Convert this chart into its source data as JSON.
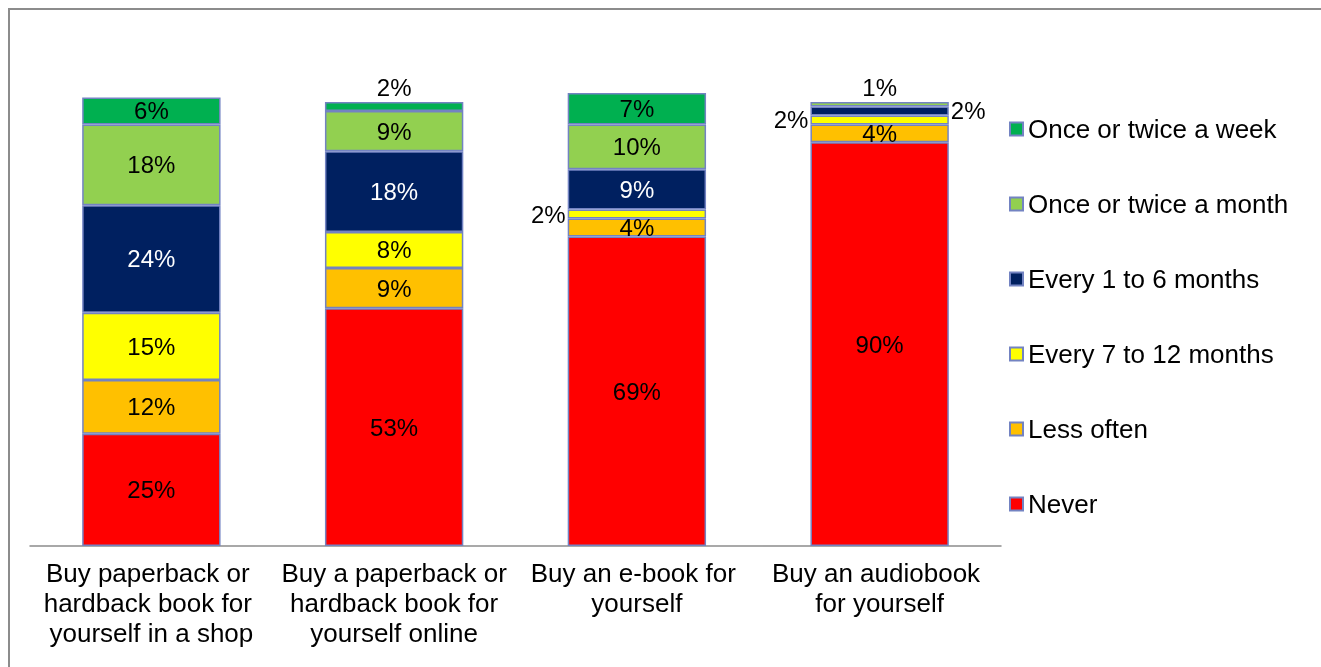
{
  "chart_data": {
    "type": "bar",
    "stacked": true,
    "categories": [
      "Buy paperback or hardback book for yourself in a shop",
      "Buy a paperback or hardback book for yourself online",
      "Buy an e-book for yourself",
      "Buy an audiobook for yourself"
    ],
    "series": [
      {
        "name": "Never",
        "color": "#ff0000",
        "values": [
          25,
          53,
          69,
          90
        ],
        "value_labels": [
          "25%",
          "53%",
          "69%",
          "90%"
        ]
      },
      {
        "name": "Less often",
        "color": "#ffc000",
        "values": [
          12,
          9,
          4,
          4
        ],
        "value_labels": [
          "12%",
          "9%",
          "4%",
          "4%"
        ]
      },
      {
        "name": "Every 7 to 12 months",
        "color": "#ffff00",
        "values": [
          15,
          8,
          2,
          2
        ],
        "value_labels": [
          "15%",
          "8%",
          "2%",
          "2%"
        ]
      },
      {
        "name": "Every 1 to 6 months",
        "color": "#002060",
        "values": [
          24,
          18,
          9,
          2
        ],
        "value_labels": [
          "24%",
          "18%",
          "9%",
          "2%"
        ]
      },
      {
        "name": "Once or twice a month",
        "color": "#92d050",
        "values": [
          18,
          9,
          10,
          1
        ],
        "value_labels": [
          "18%",
          "9%",
          "10%",
          "1%"
        ]
      },
      {
        "name": "Once or twice a week",
        "color": "#00b050",
        "values": [
          6,
          2,
          7,
          null
        ],
        "value_labels": [
          "6%",
          "2%",
          "7%",
          null
        ]
      }
    ],
    "legend": "right",
    "grid": false,
    "tick_labels": "x"
  }
}
